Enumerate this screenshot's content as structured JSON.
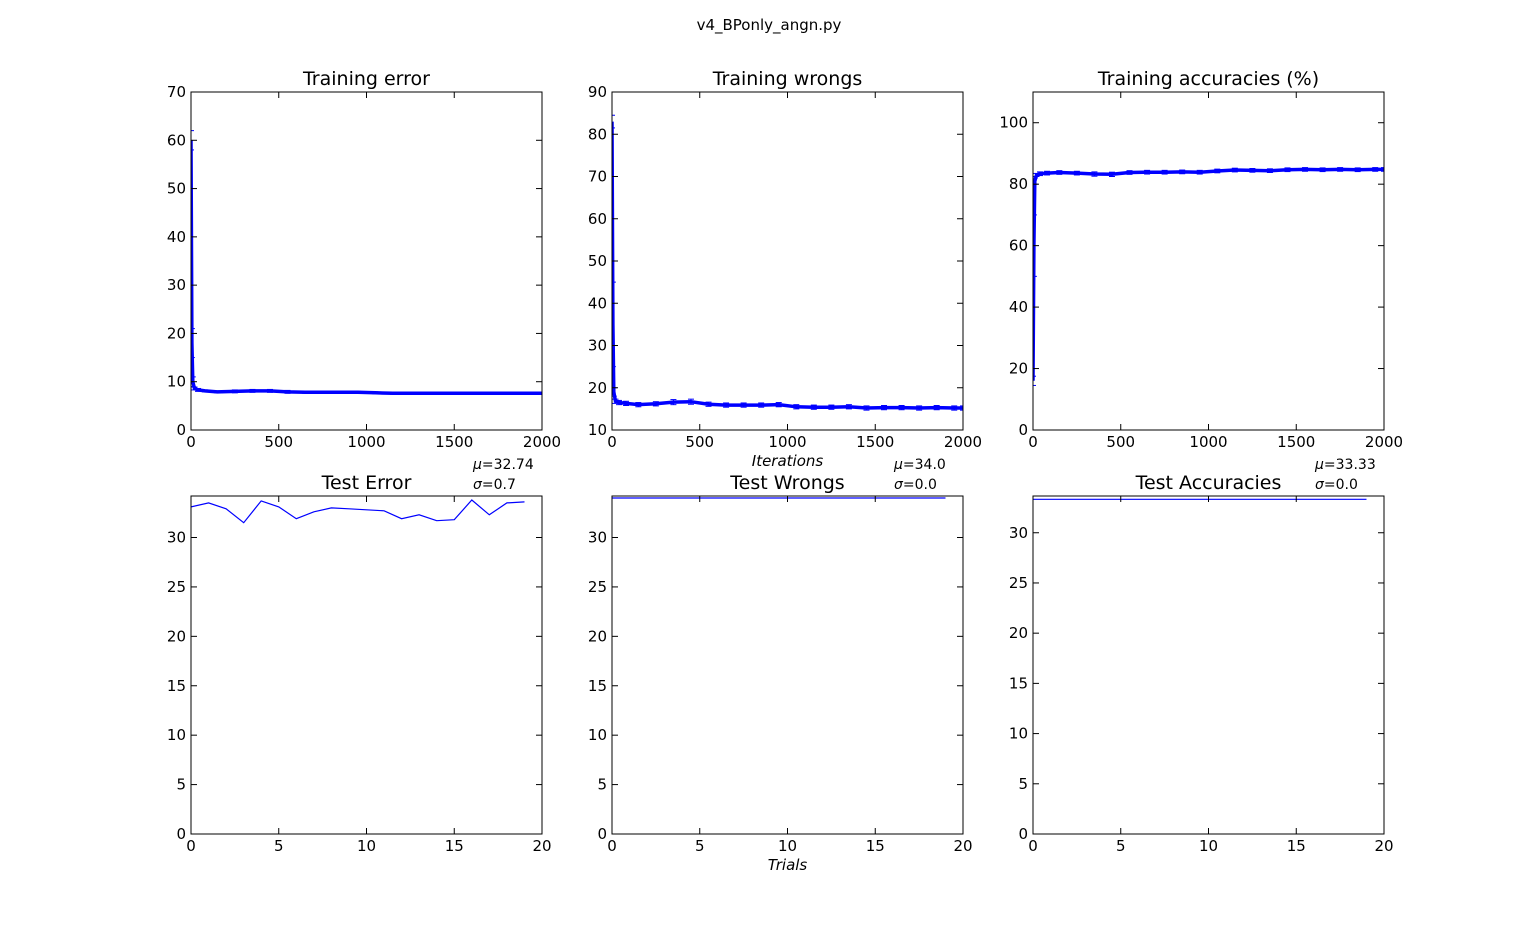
{
  "figure": {
    "suptitle": "v4_BPonly_angn.py"
  },
  "colors": {
    "series": "#0000ff",
    "axes": "#000000",
    "background": "#ffffff"
  },
  "chart_data": [
    {
      "id": "training_error",
      "type": "line",
      "title": "Training error",
      "xlabel": "",
      "ylabel": "",
      "xlim": [
        0,
        2000
      ],
      "ylim": [
        0,
        70
      ],
      "xticks": [
        0,
        500,
        1000,
        1500,
        2000
      ],
      "yticks": [
        0,
        10,
        20,
        30,
        40,
        50,
        60,
        70
      ],
      "error_bars": true,
      "series": [
        {
          "x": [
            0,
            5,
            10,
            20,
            40,
            80,
            150,
            250,
            350,
            450,
            550,
            650,
            750,
            850,
            950,
            1050,
            1150,
            1250,
            1350,
            1450,
            1550,
            1650,
            1750,
            1850,
            1950,
            2000
          ],
          "y": [
            60,
            18,
            10,
            8.6,
            8.3,
            8.1,
            7.9,
            8.0,
            8.1,
            8.1,
            7.9,
            7.8,
            7.8,
            7.8,
            7.8,
            7.7,
            7.6,
            7.6,
            7.6,
            7.6,
            7.6,
            7.6,
            7.6,
            7.6,
            7.6,
            7.6
          ],
          "err": [
            2,
            3,
            1,
            0.3,
            0.3,
            0.2,
            0.2,
            0.3,
            0.3,
            0.3,
            0.3,
            0.2,
            0.2,
            0.2,
            0.2,
            0.2,
            0.2,
            0.2,
            0.2,
            0.2,
            0.2,
            0.2,
            0.2,
            0.2,
            0.2,
            0.2
          ]
        }
      ]
    },
    {
      "id": "training_wrongs",
      "type": "line",
      "title": "Training wrongs",
      "xlabel": "Iterations",
      "ylabel": "",
      "xlim": [
        0,
        2000
      ],
      "ylim": [
        10,
        90
      ],
      "xticks": [
        0,
        500,
        1000,
        1500,
        2000
      ],
      "yticks": [
        10,
        20,
        30,
        40,
        50,
        60,
        70,
        80,
        90
      ],
      "error_bars": true,
      "series": [
        {
          "x": [
            0,
            5,
            10,
            20,
            40,
            80,
            150,
            250,
            350,
            450,
            550,
            650,
            750,
            850,
            950,
            1050,
            1150,
            1250,
            1350,
            1450,
            1550,
            1650,
            1750,
            1850,
            1950,
            2000
          ],
          "y": [
            83,
            35,
            19,
            16.8,
            16.5,
            16.3,
            16.0,
            16.2,
            16.6,
            16.7,
            16.1,
            15.9,
            15.9,
            15.9,
            16.0,
            15.5,
            15.4,
            15.4,
            15.5,
            15.2,
            15.3,
            15.3,
            15.2,
            15.3,
            15.2,
            15.2
          ],
          "err": [
            1.5,
            10,
            1,
            0.5,
            0.5,
            0.5,
            0.5,
            0.5,
            0.6,
            0.6,
            0.5,
            0.5,
            0.5,
            0.5,
            0.5,
            0.5,
            0.5,
            0.5,
            0.5,
            0.5,
            0.5,
            0.5,
            0.5,
            0.5,
            0.5,
            0.5
          ]
        }
      ]
    },
    {
      "id": "training_accuracies",
      "type": "line",
      "title": "Training accuracies (%)",
      "xlabel": "",
      "ylabel": "",
      "xlim": [
        0,
        2000
      ],
      "ylim": [
        0,
        110
      ],
      "xticks": [
        0,
        500,
        1000,
        1500,
        2000
      ],
      "yticks": [
        0,
        20,
        40,
        60,
        80,
        100
      ],
      "error_bars": true,
      "series": [
        {
          "x": [
            0,
            5,
            10,
            20,
            40,
            80,
            150,
            250,
            350,
            450,
            550,
            650,
            750,
            850,
            950,
            1050,
            1150,
            1250,
            1350,
            1450,
            1550,
            1650,
            1750,
            1850,
            1950,
            2000
          ],
          "y": [
            16,
            60,
            81,
            83.0,
            83.4,
            83.6,
            83.8,
            83.6,
            83.3,
            83.2,
            83.8,
            83.9,
            83.9,
            84.0,
            83.9,
            84.3,
            84.6,
            84.5,
            84.4,
            84.7,
            84.8,
            84.7,
            84.8,
            84.7,
            84.8,
            84.8
          ],
          "err": [
            1.5,
            10,
            1,
            0.5,
            0.6,
            0.6,
            0.6,
            0.6,
            0.7,
            0.7,
            0.6,
            0.6,
            0.6,
            0.6,
            0.6,
            0.6,
            0.6,
            0.6,
            0.6,
            0.6,
            0.6,
            0.6,
            0.6,
            0.6,
            0.6,
            0.6
          ]
        }
      ]
    },
    {
      "id": "test_error",
      "type": "line",
      "title": "Test Error",
      "xlabel": "",
      "ylabel": "",
      "xlim": [
        0,
        20
      ],
      "ylim": [
        0,
        34.2
      ],
      "xticks": [
        0,
        5,
        10,
        15,
        20
      ],
      "yticks": [
        0,
        5,
        10,
        15,
        20,
        25,
        30
      ],
      "stats": {
        "mu": "=32.74",
        "sigma": "=0.7"
      },
      "series": [
        {
          "x": [
            0,
            1,
            2,
            3,
            4,
            5,
            6,
            7,
            8,
            9,
            10,
            11,
            12,
            13,
            14,
            15,
            16,
            17,
            18,
            19
          ],
          "y": [
            33.1,
            33.5,
            32.9,
            31.5,
            33.7,
            33.1,
            31.9,
            32.6,
            33.0,
            32.9,
            32.8,
            32.7,
            31.9,
            32.3,
            31.7,
            31.8,
            33.8,
            32.3,
            33.5,
            33.6
          ]
        }
      ]
    },
    {
      "id": "test_wrongs",
      "type": "line",
      "title": "Test Wrongs",
      "xlabel": "Trials",
      "ylabel": "",
      "xlim": [
        0,
        20
      ],
      "ylim": [
        0,
        34.2
      ],
      "xticks": [
        0,
        5,
        10,
        15,
        20
      ],
      "yticks": [
        0,
        5,
        10,
        15,
        20,
        25,
        30
      ],
      "stats": {
        "mu": "=34.0",
        "sigma": "=0.0"
      },
      "series": [
        {
          "x": [
            0,
            1,
            2,
            3,
            4,
            5,
            6,
            7,
            8,
            9,
            10,
            11,
            12,
            13,
            14,
            15,
            16,
            17,
            18,
            19
          ],
          "y": [
            34,
            34,
            34,
            34,
            34,
            34,
            34,
            34,
            34,
            34,
            34,
            34,
            34,
            34,
            34,
            34,
            34,
            34,
            34,
            34
          ]
        }
      ]
    },
    {
      "id": "test_accuracies",
      "type": "line",
      "title": "Test Accuracies",
      "xlabel": "",
      "ylabel": "",
      "xlim": [
        0,
        20
      ],
      "ylim": [
        0,
        33.66
      ],
      "xticks": [
        0,
        5,
        10,
        15,
        20
      ],
      "yticks": [
        0,
        5,
        10,
        15,
        20,
        25,
        30
      ],
      "stats": {
        "mu": "=33.33",
        "sigma": "=0.0"
      },
      "series": [
        {
          "x": [
            0,
            1,
            2,
            3,
            4,
            5,
            6,
            7,
            8,
            9,
            10,
            11,
            12,
            13,
            14,
            15,
            16,
            17,
            18,
            19
          ],
          "y": [
            33.33,
            33.33,
            33.33,
            33.33,
            33.33,
            33.33,
            33.33,
            33.33,
            33.33,
            33.33,
            33.33,
            33.33,
            33.33,
            33.33,
            33.33,
            33.33,
            33.33,
            33.33,
            33.33,
            33.33
          ]
        }
      ]
    }
  ]
}
